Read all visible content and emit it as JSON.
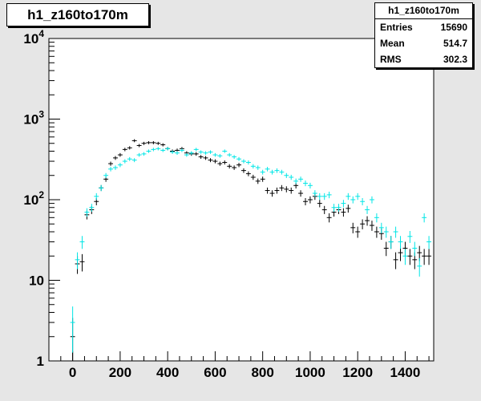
{
  "histogram_title": "h1_z160to170m",
  "stats": {
    "title": "h1_z160to170m",
    "rows": [
      {
        "label": "Entries",
        "value": "15690"
      },
      {
        "label": "Mean",
        "value": "514.7"
      },
      {
        "label": "RMS",
        "value": "302.3"
      }
    ]
  },
  "colors": {
    "series_black": "#000000",
    "series_cyan": "#00e6e6",
    "frame": "#000000",
    "plot_bg": "#ffffff",
    "canvas_bg": "#e6e6e6"
  },
  "chart_data": {
    "type": "scatter",
    "title": "h1_z160to170m",
    "xlabel": "",
    "ylabel": "",
    "xlim": [
      -100,
      1520
    ],
    "ylim": [
      1,
      10000
    ],
    "y_scale": "log",
    "grid": false,
    "x_ticks": [
      0,
      200,
      400,
      600,
      800,
      1000,
      1200,
      1400
    ],
    "y_ticks": [
      {
        "value": 1,
        "label": "1"
      },
      {
        "value": 10,
        "label": "10"
      },
      {
        "value": 100,
        "label": "10^2"
      },
      {
        "value": 1000,
        "label": "10^3"
      },
      {
        "value": 10000,
        "label": "10^4"
      }
    ],
    "series": [
      {
        "color": "#000000",
        "x": [
          0,
          20,
          40,
          60,
          80,
          100,
          120,
          140,
          160,
          180,
          200,
          220,
          240,
          260,
          280,
          300,
          320,
          340,
          360,
          380,
          400,
          420,
          440,
          460,
          480,
          500,
          520,
          540,
          560,
          580,
          600,
          620,
          640,
          660,
          680,
          700,
          720,
          740,
          760,
          780,
          800,
          820,
          840,
          860,
          880,
          900,
          920,
          940,
          960,
          980,
          1000,
          1020,
          1040,
          1060,
          1080,
          1100,
          1120,
          1140,
          1160,
          1180,
          1200,
          1220,
          1240,
          1260,
          1280,
          1300,
          1320,
          1340,
          1360,
          1380,
          1400,
          1420,
          1440,
          1460,
          1480,
          1500
        ],
        "y": [
          2,
          16,
          17,
          65,
          75,
          95,
          140,
          180,
          280,
          330,
          360,
          420,
          440,
          540,
          470,
          500,
          510,
          510,
          500,
          480,
          430,
          400,
          410,
          430,
          380,
          370,
          370,
          340,
          330,
          310,
          300,
          280,
          290,
          260,
          250,
          270,
          230,
          210,
          190,
          170,
          180,
          130,
          120,
          130,
          140,
          135,
          130,
          150,
          120,
          95,
          100,
          110,
          90,
          75,
          60,
          70,
          75,
          70,
          78,
          45,
          40,
          50,
          55,
          48,
          40,
          38,
          25,
          30,
          18,
          22,
          25,
          20,
          18,
          22,
          20,
          20
        ]
      },
      {
        "color": "#00e6e6",
        "x": [
          0,
          20,
          40,
          60,
          80,
          100,
          120,
          140,
          160,
          180,
          200,
          220,
          240,
          260,
          280,
          300,
          320,
          340,
          360,
          380,
          400,
          420,
          440,
          460,
          480,
          500,
          520,
          540,
          560,
          580,
          600,
          620,
          640,
          660,
          680,
          700,
          720,
          740,
          760,
          780,
          800,
          820,
          840,
          860,
          880,
          900,
          920,
          940,
          960,
          980,
          1000,
          1020,
          1040,
          1060,
          1080,
          1100,
          1120,
          1140,
          1160,
          1180,
          1200,
          1220,
          1240,
          1260,
          1280,
          1300,
          1320,
          1340,
          1360,
          1380,
          1400,
          1420,
          1440,
          1460,
          1480,
          1500
        ],
        "y": [
          3,
          18,
          30,
          70,
          80,
          110,
          140,
          200,
          240,
          250,
          270,
          300,
          320,
          310,
          360,
          370,
          400,
          420,
          430,
          410,
          430,
          390,
          380,
          410,
          360,
          380,
          420,
          390,
          380,
          390,
          360,
          350,
          400,
          360,
          340,
          320,
          300,
          290,
          260,
          250,
          220,
          240,
          220,
          230,
          220,
          200,
          190,
          170,
          180,
          160,
          150,
          120,
          110,
          110,
          115,
          80,
          80,
          90,
          110,
          100,
          110,
          95,
          75,
          100,
          60,
          45,
          40,
          30,
          40,
          30,
          20,
          35,
          25,
          15,
          60,
          30
        ]
      }
    ]
  }
}
